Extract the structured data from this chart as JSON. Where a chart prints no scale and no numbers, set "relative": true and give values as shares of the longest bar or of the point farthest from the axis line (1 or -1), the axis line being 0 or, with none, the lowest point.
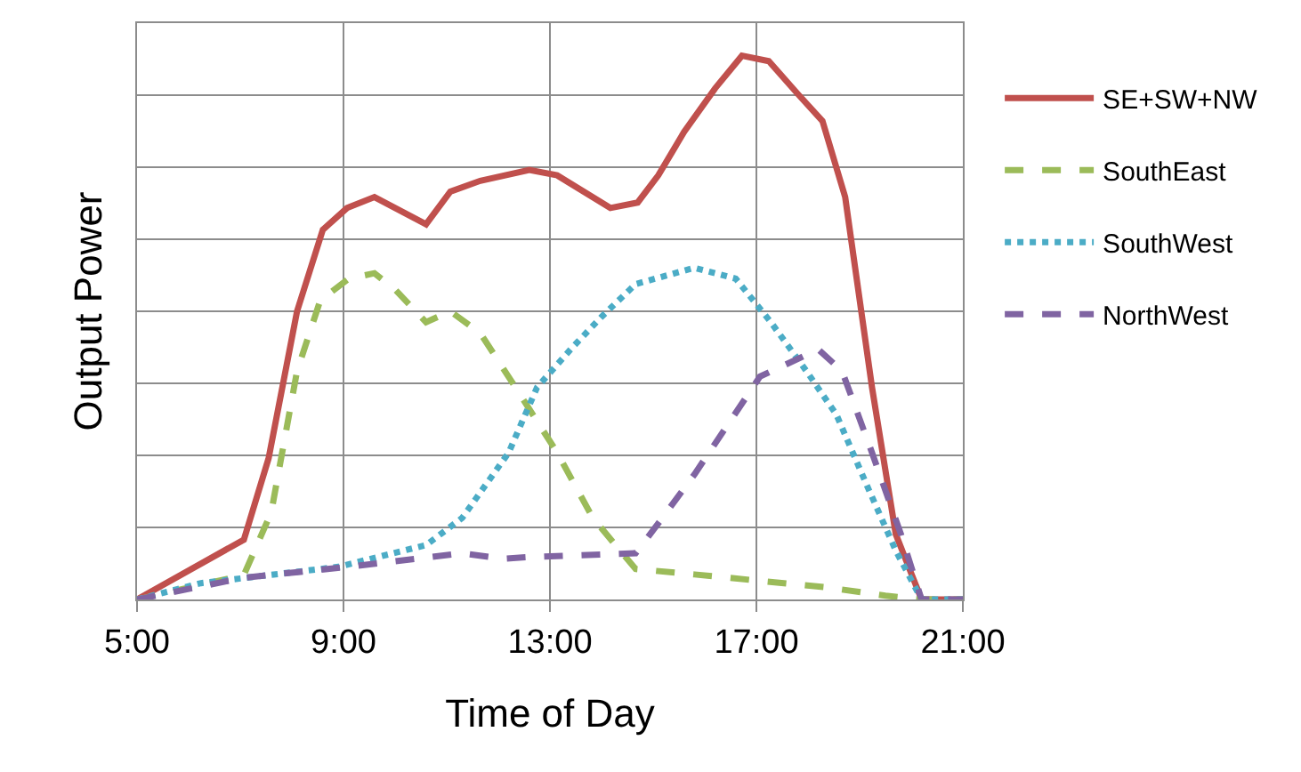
{
  "chart_data": {
    "type": "line",
    "relative": true,
    "xlabel": "Time of Day",
    "ylabel": "Output Power",
    "xlim": [
      5,
      21
    ],
    "xticks": [
      {
        "value": 5,
        "label": "5:00"
      },
      {
        "value": 9,
        "label": "9:00"
      },
      {
        "value": 13,
        "label": "13:00"
      },
      {
        "value": 17,
        "label": "17:00"
      },
      {
        "value": 21,
        "label": "21:00"
      }
    ],
    "grid": true,
    "legend": "right",
    "marker": "none",
    "series": [
      {
        "name": "SE+SW+NW",
        "color": "#c0504d",
        "line_style": "solid",
        "x": [
          5,
          7.07,
          7.55,
          8.1,
          8.6,
          9.07,
          9.6,
          10.6,
          11.07,
          11.65,
          12.6,
          13.14,
          14.17,
          14.7,
          15.1,
          15.6,
          16.2,
          16.72,
          17.24,
          17.8,
          18.28,
          18.72,
          19.24,
          19.7,
          20.2,
          21
        ],
        "values": [
          0,
          0.11,
          0.26,
          0.53,
          0.68,
          0.72,
          0.74,
          0.69,
          0.75,
          0.77,
          0.79,
          0.78,
          0.72,
          0.73,
          0.78,
          0.86,
          0.94,
          1.0,
          0.99,
          0.93,
          0.88,
          0.74,
          0.39,
          0.12,
          0,
          0
        ]
      },
      {
        "name": "SouthEast",
        "color": "#9bbb59",
        "line_style": "dashed",
        "x": [
          5,
          7.07,
          7.6,
          8.1,
          8.55,
          9.1,
          9.6,
          10.0,
          10.6,
          11.07,
          11.65,
          12.4,
          13.14,
          13.83,
          14.66,
          15.8,
          17.2,
          18.3,
          19.5,
          20.2,
          21
        ],
        "values": [
          0,
          0.045,
          0.16,
          0.42,
          0.55,
          0.59,
          0.6,
          0.57,
          0.51,
          0.53,
          0.49,
          0.38,
          0.27,
          0.15,
          0.056,
          0.046,
          0.033,
          0.023,
          0.007,
          0,
          0
        ]
      },
      {
        "name": "SouthWest",
        "color": "#4bacc6",
        "line_style": "dotted",
        "x": [
          5,
          6.24,
          8.9,
          10.6,
          11.3,
          12.2,
          12.75,
          13.4,
          14.0,
          14.66,
          15.8,
          16.6,
          17.28,
          17.97,
          18.55,
          19.14,
          19.7,
          20.2,
          21
        ],
        "values": [
          0,
          0.03,
          0.06,
          0.1,
          0.15,
          0.27,
          0.39,
          0.46,
          0.52,
          0.58,
          0.61,
          0.59,
          0.51,
          0.42,
          0.34,
          0.21,
          0.09,
          0,
          0
        ]
      },
      {
        "name": "NorthWest",
        "color": "#8064a2",
        "line_style": "dashed",
        "x": [
          5,
          7.07,
          9.1,
          11.3,
          12.1,
          12.6,
          14.66,
          15.1,
          15.8,
          17.07,
          18.2,
          18.66,
          19.24,
          19.8,
          20.2,
          21
        ],
        "values": [
          0,
          0.04,
          0.06,
          0.085,
          0.075,
          0.078,
          0.085,
          0.14,
          0.23,
          0.41,
          0.46,
          0.42,
          0.27,
          0.12,
          0,
          0
        ]
      }
    ]
  }
}
